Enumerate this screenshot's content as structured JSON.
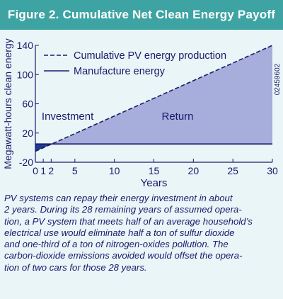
{
  "title": "Figure 2. Cumulative Net Clean Energy Payoff",
  "figure_id": "02459602",
  "caption": "PV systems can repay their energy investment in about\n2 years. During its 28 remaining years of assumed opera-\ntion, a PV system that meets half of an average household’s\nelectrical use would eliminate half a ton of sulfur dioxide\nand one-third of a ton of nitrogen-oxides pollution. The\ncarbon-dioxide emissions avoided would offset the opera-\ntion of two cars for those 28 years.",
  "colors": {
    "title_bg": "#3ea4a3",
    "panel_bg": "#e9f5f6",
    "navy": "#1a1a6e",
    "return_fill": "#a7aedb",
    "investment_fill": "#1f3a8f"
  },
  "chart_data": {
    "type": "line",
    "xlabel": "Years",
    "ylabel": "Megawatt-hours clean energy",
    "xlim": [
      0,
      30
    ],
    "ylim": [
      -20,
      140
    ],
    "x_ticks": [
      0,
      1,
      2,
      5,
      10,
      15,
      20,
      25,
      30
    ],
    "y_ticks": [
      -20,
      20,
      60,
      100,
      140
    ],
    "x_tick_labels": [
      "0",
      "1",
      "2",
      "5",
      "10",
      "15",
      "20",
      "25",
      "30"
    ],
    "y_tick_labels": [
      "-20",
      "20",
      "60",
      "100",
      "140"
    ],
    "legend_position": "top-left",
    "series": [
      {
        "name": "Cumulative PV energy production",
        "style": "dashed",
        "x": [
          0,
          30
        ],
        "y": [
          -5,
          140
        ]
      },
      {
        "name": "Manufacture energy",
        "style": "solid",
        "x": [
          0,
          30
        ],
        "y": [
          5,
          5
        ]
      }
    ],
    "annotations": [
      {
        "text": "Investment",
        "x": 0.8,
        "y": 38
      },
      {
        "text": "Return",
        "x": 18,
        "y": 38
      }
    ],
    "breakeven_year": 2
  }
}
